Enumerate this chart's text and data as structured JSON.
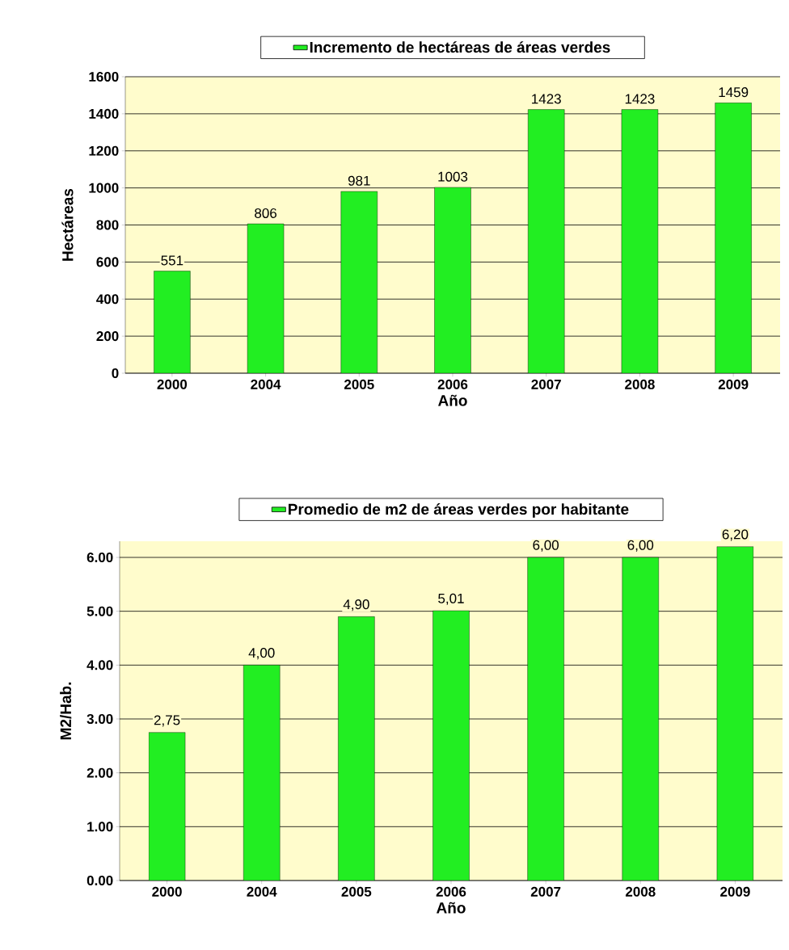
{
  "chart_data": [
    {
      "type": "bar",
      "categories": [
        "2000",
        "2004",
        "2005",
        "2006",
        "2007",
        "2008",
        "2009"
      ],
      "xlabel": "Año",
      "ylabel": "Hectáreas",
      "series": [
        {
          "name": "Incremento de hectáreas de áreas verdes",
          "color": "#22ee22",
          "values": [
            551,
            806,
            981,
            1003,
            1423,
            1423,
            1459
          ],
          "value_labels": [
            "551",
            "806",
            "981",
            "1003",
            "1423",
            "1423",
            "1459"
          ]
        }
      ],
      "ylim": [
        0,
        1600
      ],
      "yticks": [
        0,
        200,
        400,
        600,
        800,
        1000,
        1200,
        1400,
        1600
      ],
      "grid": "y",
      "legend": "top"
    },
    {
      "type": "bar",
      "categories": [
        "2000",
        "2004",
        "2005",
        "2006",
        "2007",
        "2008",
        "2009"
      ],
      "xlabel": "Año",
      "ylabel": "M2/Hab.",
      "series": [
        {
          "name": "Promedio de m2 de áreas verdes por habitante",
          "color": "#22ee22",
          "values": [
            2.75,
            4.0,
            4.9,
            5.01,
            6.0,
            6.0,
            6.2
          ],
          "value_labels": [
            "2,75",
            "4,00",
            "4,90",
            "5,01",
            "6,00",
            "6,00",
            "6,20"
          ]
        }
      ],
      "ylim": [
        0,
        6.3
      ],
      "yticks": [
        {
          "value": 0,
          "label": "0.00"
        },
        {
          "value": 1,
          "label": "1.00"
        },
        {
          "value": 2,
          "label": "2.00"
        },
        {
          "value": 3,
          "label": "3.00"
        },
        {
          "value": 4,
          "label": "4.00"
        },
        {
          "value": 5,
          "label": "5.00"
        },
        {
          "value": 6,
          "label": "6.00"
        }
      ],
      "grid": "y",
      "legend": "top"
    }
  ]
}
